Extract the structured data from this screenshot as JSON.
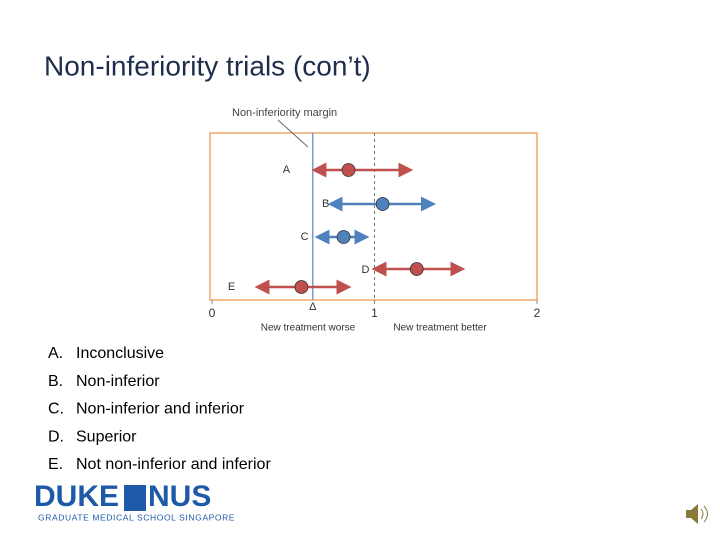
{
  "title": "Non-inferiority trials (con’t)",
  "chart_data": {
    "type": "interval",
    "margin_label": "Non-inferiority margin",
    "margin_symbol": "Δ",
    "margin": 0.62,
    "reference": 1,
    "xlim": [
      0,
      2
    ],
    "xticks": [
      0,
      1,
      2
    ],
    "xlabel_left": "New treatment worse",
    "xlabel_right": "New treatment better",
    "series": [
      {
        "name": "A",
        "color": "#c0504d",
        "low": 0.63,
        "point": 0.84,
        "high": 1.22
      },
      {
        "name": "B",
        "color": "#4f81bd",
        "low": 0.73,
        "point": 1.05,
        "high": 1.36
      },
      {
        "name": "C",
        "color": "#4f81bd",
        "low": 0.65,
        "point": 0.81,
        "high": 0.95
      },
      {
        "name": "D",
        "color": "#c0504d",
        "low": 1.0,
        "point": 1.26,
        "high": 1.54
      },
      {
        "name": "E",
        "color": "#c0504d",
        "low": 0.28,
        "point": 0.55,
        "high": 0.84
      }
    ]
  },
  "list": [
    {
      "marker": "A.",
      "text": "Inconclusive"
    },
    {
      "marker": "B.",
      "text": "Non-inferior"
    },
    {
      "marker": "C.",
      "text": "Non-inferior and inferior"
    },
    {
      "marker": "D.",
      "text": "Superior"
    },
    {
      "marker": "E.",
      "text": "Not non-inferior and inferior"
    }
  ],
  "logo": {
    "left": "DUKE",
    "right": "NUS",
    "subtitle": "GRADUATE MEDICAL SCHOOL SINGAPORE"
  }
}
